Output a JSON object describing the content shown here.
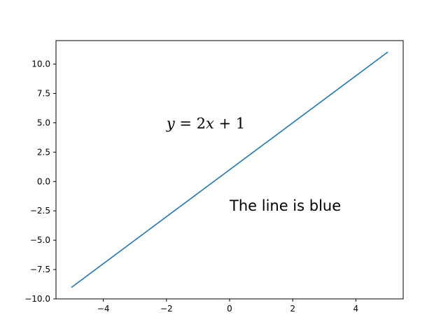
{
  "chart_data": {
    "type": "line",
    "title": "",
    "xlabel": "",
    "ylabel": "",
    "xlim": [
      -5.5,
      5.5
    ],
    "ylim": [
      -10,
      12
    ],
    "grid": false,
    "x_ticks": [
      -4,
      -2,
      0,
      2,
      4
    ],
    "y_ticks": [
      -10.0,
      -7.5,
      -5.0,
      -2.5,
      0.0,
      2.5,
      5.0,
      7.5,
      10.0
    ],
    "x_tick_labels": [
      "−4",
      "−2",
      "0",
      "2",
      "4"
    ],
    "y_tick_labels": [
      "−10.0",
      "−7.5",
      "−5.0",
      "−2.5",
      "0.0",
      "2.5",
      "5.0",
      "7.5",
      "10.0"
    ],
    "series": [
      {
        "color": "#1f77b4",
        "x": [
          -5,
          5
        ],
        "y": [
          -9,
          11
        ]
      }
    ],
    "annotations": [
      {
        "text": "y = 2x + 1",
        "x": -2,
        "y": 5,
        "math": true
      },
      {
        "text": "The line is blue",
        "x": 0,
        "y": -2,
        "math": false
      }
    ]
  }
}
